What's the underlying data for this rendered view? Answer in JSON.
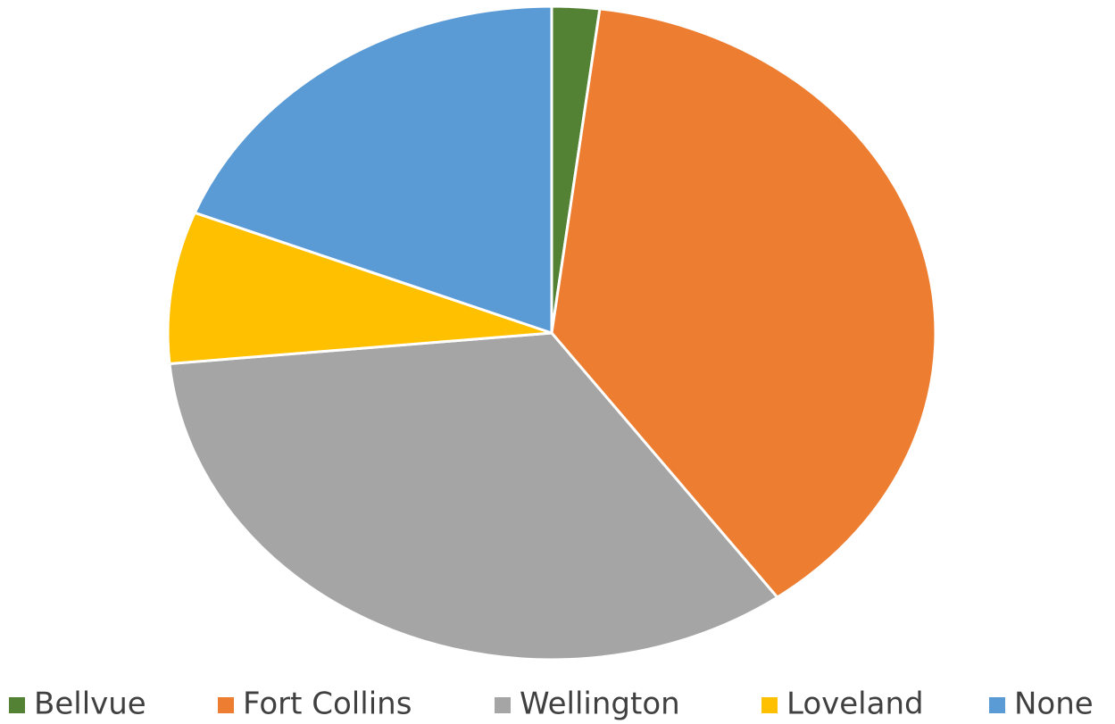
{
  "chart_data": {
    "type": "pie",
    "categories": [
      "Bellvue",
      "Fort Collins",
      "Wellington",
      "Loveland",
      "None"
    ],
    "values": [
      2,
      38,
      33.5,
      7.5,
      19
    ],
    "colors": [
      "#548235",
      "#ed7d31",
      "#a5a5a5",
      "#ffc000",
      "#5b9bd5"
    ],
    "legend": "bottom"
  }
}
